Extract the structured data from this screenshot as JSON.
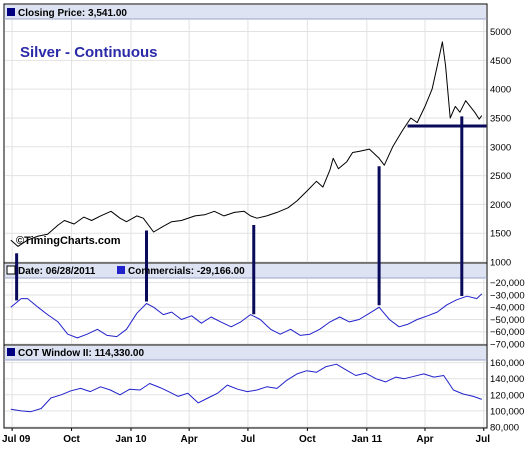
{
  "header": {
    "closing_label": "Closing Price: 3,541.00",
    "chart_title": "Silver - Continuous",
    "watermark": "©TimingCharts.com"
  },
  "panel2": {
    "date_label": "Date: 06/28/2011",
    "commercials_label": "Commercials: -29,166.00"
  },
  "panel3": {
    "cot_label": "COT Window II: 114,330.00"
  },
  "colors": {
    "price_line": "#000000",
    "indicator_line": "#2222cc",
    "annotation": "#0a0a5a",
    "title": "#2a2aa8",
    "label_bar": "#dde3f3",
    "grid": "#e2e2e2"
  },
  "chart_data": [
    {
      "type": "line",
      "title": "Silver - Continuous",
      "x_ticks": [
        "Jul 09",
        "Oct",
        "Jan 10",
        "Apr",
        "Jul",
        "Oct",
        "Jan 11",
        "Apr",
        "Jul"
      ],
      "y_ticks": [
        1000,
        1500,
        2000,
        2500,
        3000,
        3500,
        4000,
        4500,
        5000
      ],
      "ylim": [
        1000,
        5200
      ],
      "grid": true,
      "series": [
        {
          "name": "Closing Price",
          "points": [
            [
              "2009-06-29",
              1380
            ],
            [
              "2009-07-10",
              1270
            ],
            [
              "2009-07-25",
              1380
            ],
            [
              "2009-08-10",
              1450
            ],
            [
              "2009-08-25",
              1480
            ],
            [
              "2009-09-10",
              1640
            ],
            [
              "2009-09-20",
              1720
            ],
            [
              "2009-10-05",
              1660
            ],
            [
              "2009-10-20",
              1780
            ],
            [
              "2009-11-01",
              1720
            ],
            [
              "2009-11-15",
              1800
            ],
            [
              "2009-12-01",
              1880
            ],
            [
              "2009-12-15",
              1760
            ],
            [
              "2009-12-25",
              1700
            ],
            [
              "2010-01-10",
              1800
            ],
            [
              "2010-01-20",
              1760
            ],
            [
              "2010-02-05",
              1520
            ],
            [
              "2010-02-20",
              1620
            ],
            [
              "2010-03-05",
              1700
            ],
            [
              "2010-03-20",
              1720
            ],
            [
              "2010-04-10",
              1800
            ],
            [
              "2010-04-25",
              1820
            ],
            [
              "2010-05-10",
              1880
            ],
            [
              "2010-05-25",
              1800
            ],
            [
              "2010-06-10",
              1860
            ],
            [
              "2010-06-25",
              1880
            ],
            [
              "2010-07-05",
              1800
            ],
            [
              "2010-07-15",
              1760
            ],
            [
              "2010-07-30",
              1800
            ],
            [
              "2010-08-15",
              1860
            ],
            [
              "2010-09-01",
              1940
            ],
            [
              "2010-09-15",
              2060
            ],
            [
              "2010-10-01",
              2240
            ],
            [
              "2010-10-15",
              2400
            ],
            [
              "2010-10-25",
              2300
            ],
            [
              "2010-11-05",
              2600
            ],
            [
              "2010-11-10",
              2800
            ],
            [
              "2010-11-18",
              2620
            ],
            [
              "2010-12-01",
              2740
            ],
            [
              "2010-12-10",
              2900
            ],
            [
              "2010-12-20",
              2920
            ],
            [
              "2011-01-05",
              2960
            ],
            [
              "2011-01-20",
              2800
            ],
            [
              "2011-01-28",
              2680
            ],
            [
              "2011-02-10",
              3000
            ],
            [
              "2011-02-25",
              3280
            ],
            [
              "2011-03-10",
              3500
            ],
            [
              "2011-03-20",
              3420
            ],
            [
              "2011-04-01",
              3700
            ],
            [
              "2011-04-12",
              4000
            ],
            [
              "2011-04-20",
              4400
            ],
            [
              "2011-04-28",
              4820
            ],
            [
              "2011-05-03",
              4400
            ],
            [
              "2011-05-10",
              3500
            ],
            [
              "2011-05-18",
              3700
            ],
            [
              "2011-05-25",
              3600
            ],
            [
              "2011-06-03",
              3800
            ],
            [
              "2011-06-10",
              3700
            ],
            [
              "2011-06-17",
              3600
            ],
            [
              "2011-06-24",
              3480
            ],
            [
              "2011-06-28",
              3541
            ]
          ]
        }
      ],
      "annotations": {
        "horizontal_level": 3360,
        "horizontal_from": "2011-03-05",
        "horizontal_to": "2011-07-05",
        "vertical_markers": [
          "2009-07-08",
          "2010-01-25",
          "2010-07-10",
          "2011-01-20",
          "2011-05-28"
        ]
      }
    },
    {
      "type": "line",
      "x_ticks": [
        "Jul 09",
        "Oct",
        "Jan 10",
        "Apr",
        "Jul",
        "Oct",
        "Jan 11",
        "Apr",
        "Jul"
      ],
      "y_ticks": [
        -20000,
        -30000,
        -40000,
        -50000,
        -60000,
        -70000
      ],
      "ylim": [
        -70000,
        -17000
      ],
      "grid": true,
      "series": [
        {
          "name": "Commercials",
          "points": [
            [
              "2009-06-29",
              -40000
            ],
            [
              "2009-07-15",
              -33000
            ],
            [
              "2009-07-25",
              -33000
            ],
            [
              "2009-08-10",
              -40000
            ],
            [
              "2009-08-25",
              -46000
            ],
            [
              "2009-09-10",
              -52000
            ],
            [
              "2009-09-25",
              -62000
            ],
            [
              "2009-10-10",
              -65000
            ],
            [
              "2009-10-25",
              -62000
            ],
            [
              "2009-11-10",
              -58000
            ],
            [
              "2009-11-25",
              -63000
            ],
            [
              "2009-12-10",
              -64000
            ],
            [
              "2009-12-25",
              -58000
            ],
            [
              "2010-01-10",
              -45000
            ],
            [
              "2010-01-25",
              -37000
            ],
            [
              "2010-02-05",
              -40000
            ],
            [
              "2010-02-20",
              -46000
            ],
            [
              "2010-03-05",
              -44000
            ],
            [
              "2010-03-20",
              -50000
            ],
            [
              "2010-04-05",
              -47000
            ],
            [
              "2010-04-20",
              -53000
            ],
            [
              "2010-05-05",
              -48000
            ],
            [
              "2010-05-20",
              -52000
            ],
            [
              "2010-06-05",
              -56000
            ],
            [
              "2010-06-20",
              -52000
            ],
            [
              "2010-07-05",
              -46000
            ],
            [
              "2010-07-20",
              -50000
            ],
            [
              "2010-08-05",
              -58000
            ],
            [
              "2010-08-20",
              -62000
            ],
            [
              "2010-09-05",
              -58000
            ],
            [
              "2010-09-20",
              -63000
            ],
            [
              "2010-10-05",
              -62000
            ],
            [
              "2010-10-20",
              -58000
            ],
            [
              "2010-11-05",
              -52000
            ],
            [
              "2010-11-20",
              -48000
            ],
            [
              "2010-12-05",
              -52000
            ],
            [
              "2010-12-20",
              -50000
            ],
            [
              "2011-01-05",
              -45000
            ],
            [
              "2011-01-20",
              -40000
            ],
            [
              "2011-02-05",
              -50000
            ],
            [
              "2011-02-20",
              -56000
            ],
            [
              "2011-03-05",
              -54000
            ],
            [
              "2011-03-20",
              -50000
            ],
            [
              "2011-04-05",
              -47000
            ],
            [
              "2011-04-20",
              -44000
            ],
            [
              "2011-05-05",
              -38000
            ],
            [
              "2011-05-20",
              -34000
            ],
            [
              "2011-06-05",
              -31000
            ],
            [
              "2011-06-20",
              -33000
            ],
            [
              "2011-06-28",
              -29166
            ]
          ]
        }
      ]
    },
    {
      "type": "line",
      "x_ticks": [
        "Jul 09",
        "Oct",
        "Jan 10",
        "Apr",
        "Jul",
        "Oct",
        "Jan 11",
        "Apr",
        "Jul"
      ],
      "y_ticks": [
        80000,
        100000,
        120000,
        140000,
        160000
      ],
      "ylim": [
        80000,
        162000
      ],
      "grid": true,
      "series": [
        {
          "name": "COT Window II",
          "points": [
            [
              "2009-06-29",
              102000
            ],
            [
              "2009-07-15",
              100000
            ],
            [
              "2009-07-30",
              99000
            ],
            [
              "2009-08-15",
              103000
            ],
            [
              "2009-08-30",
              116000
            ],
            [
              "2009-09-15",
              120000
            ],
            [
              "2009-09-30",
              125000
            ],
            [
              "2009-10-15",
              128000
            ],
            [
              "2009-10-30",
              124000
            ],
            [
              "2009-11-15",
              130000
            ],
            [
              "2009-11-30",
              126000
            ],
            [
              "2009-12-15",
              120000
            ],
            [
              "2009-12-30",
              127000
            ],
            [
              "2010-01-15",
              126000
            ],
            [
              "2010-01-30",
              134000
            ],
            [
              "2010-02-15",
              129000
            ],
            [
              "2010-02-28",
              124000
            ],
            [
              "2010-03-15",
              118000
            ],
            [
              "2010-03-30",
              122000
            ],
            [
              "2010-04-15",
              110000
            ],
            [
              "2010-04-30",
              116000
            ],
            [
              "2010-05-15",
              122000
            ],
            [
              "2010-05-30",
              132000
            ],
            [
              "2010-06-15",
              127000
            ],
            [
              "2010-06-30",
              124000
            ],
            [
              "2010-07-15",
              126000
            ],
            [
              "2010-07-30",
              130000
            ],
            [
              "2010-08-15",
              128000
            ],
            [
              "2010-08-30",
              138000
            ],
            [
              "2010-09-15",
              146000
            ],
            [
              "2010-09-30",
              150000
            ],
            [
              "2010-10-15",
              148000
            ],
            [
              "2010-10-30",
              155000
            ],
            [
              "2010-11-15",
              158000
            ],
            [
              "2010-11-30",
              151000
            ],
            [
              "2010-12-15",
              144000
            ],
            [
              "2010-12-30",
              147000
            ],
            [
              "2011-01-15",
              140000
            ],
            [
              "2011-01-30",
              136000
            ],
            [
              "2011-02-15",
              142000
            ],
            [
              "2011-02-28",
              140000
            ],
            [
              "2011-03-15",
              143000
            ],
            [
              "2011-03-30",
              146000
            ],
            [
              "2011-04-15",
              142000
            ],
            [
              "2011-04-30",
              144000
            ],
            [
              "2011-05-15",
              126000
            ],
            [
              "2011-05-30",
              121000
            ],
            [
              "2011-06-15",
              118000
            ],
            [
              "2011-06-28",
              114330
            ]
          ]
        }
      ]
    }
  ]
}
